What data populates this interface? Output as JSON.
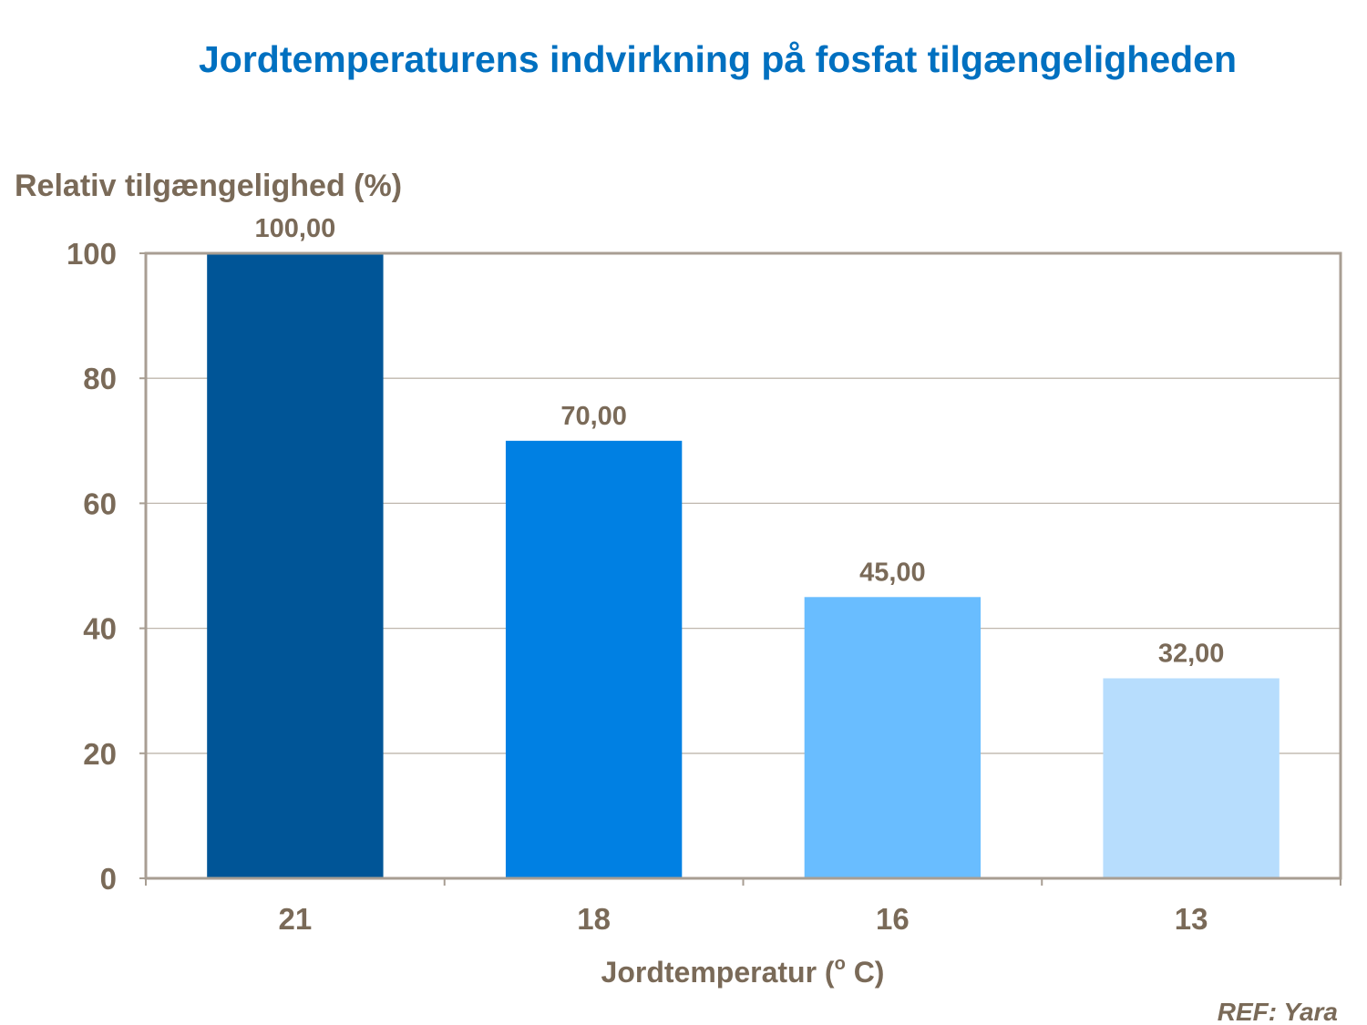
{
  "title": "Jordtemperaturens indvirkning på fosfat tilgængeligheden",
  "reference": "REF: Yara",
  "chart_data": {
    "type": "bar",
    "title": "Jordtemperaturens indvirkning på fosfat tilgængeligheden",
    "ylabel": "Relativ tilgængelighed (%)",
    "xlabel_prefix": "Jordtemperatur (",
    "xlabel_superscript": "o",
    "xlabel_suffix": " C)",
    "categories": [
      "21",
      "18",
      "16",
      "13"
    ],
    "values": [
      100,
      70,
      45,
      32
    ],
    "data_labels": [
      "100,00",
      "70,00",
      "45,00",
      "32,00"
    ],
    "ylim": [
      0,
      100
    ],
    "yticks": [
      0,
      20,
      40,
      60,
      80,
      100
    ],
    "grid": true,
    "bar_colors": [
      "#005597",
      "#0080e3",
      "#69bdff",
      "#b7ddfd"
    ],
    "gridline_color": "#bfb7ad",
    "axis_color": "#a89e93"
  }
}
